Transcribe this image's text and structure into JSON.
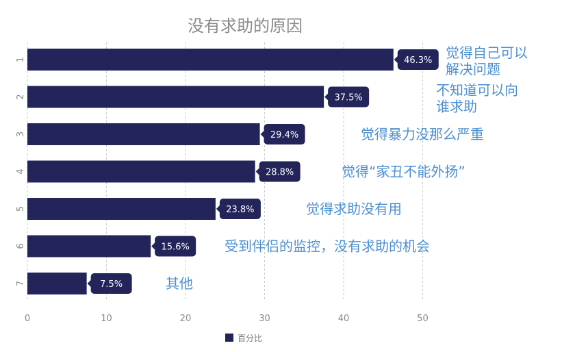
{
  "chart_data": {
    "type": "bar",
    "orientation": "horizontal",
    "title": "没有求助的原因",
    "categories": [
      "1",
      "2",
      "3",
      "4",
      "5",
      "6",
      "7"
    ],
    "series": [
      {
        "name": "百分比",
        "values": [
          46.3,
          37.5,
          29.4,
          28.8,
          23.8,
          15.6,
          7.5
        ],
        "color": "#23245a"
      }
    ],
    "data_labels": [
      "46.3%",
      "37.5%",
      "29.4%",
      "28.8%",
      "23.8%",
      "15.6%",
      "7.5%"
    ],
    "annotations": [
      [
        "觉得自己可以",
        "解决问题"
      ],
      [
        "不知道可以向",
        "谁求助"
      ],
      [
        "觉得暴力没那么严重"
      ],
      [
        "觉得“家丑不能外扬”"
      ],
      [
        "觉得求助没有用"
      ],
      [
        "受到伴侣的监控，没有求助的机会"
      ],
      [
        "其他"
      ]
    ],
    "xticks": [
      "0",
      "10",
      "20",
      "30",
      "40",
      "50"
    ],
    "xlim": [
      0,
      60
    ],
    "grid": "vertical-dashed",
    "legend": "bottom-center",
    "annotation_color": "#4a90d2"
  }
}
